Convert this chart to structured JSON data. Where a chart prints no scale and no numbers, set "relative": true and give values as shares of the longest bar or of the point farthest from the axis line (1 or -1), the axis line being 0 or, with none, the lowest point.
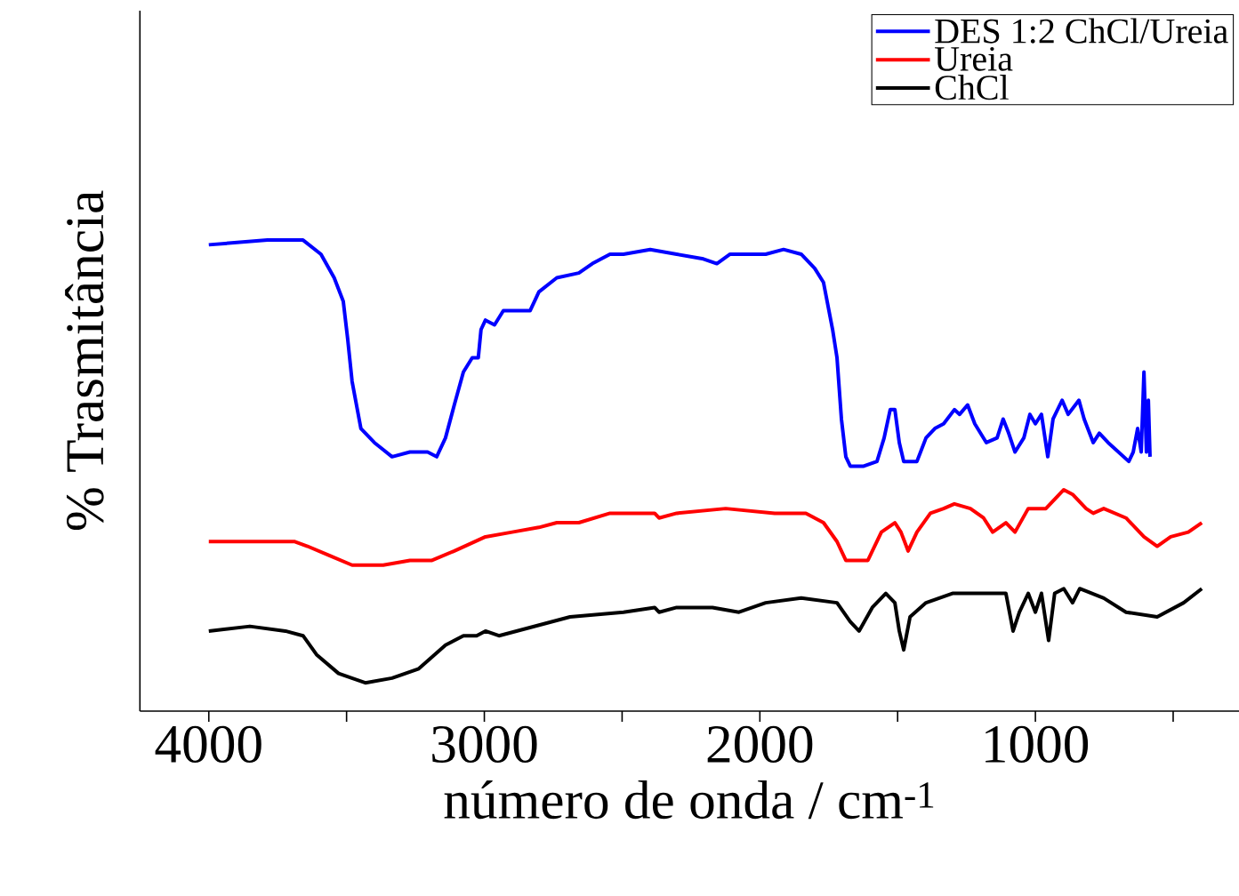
{
  "chart_data": {
    "type": "line",
    "relative": true,
    "xlabel": "número de onda / cm$^{-1}$",
    "ylabel": "% Trasmitância",
    "xlim": [
      4250,
      260
    ],
    "xticks": [
      4000,
      {
        "value": 3500,
        "label": null
      },
      3000,
      {
        "value": 2500,
        "label": null
      },
      2000,
      {
        "value": 1500,
        "label": null
      },
      1000,
      {
        "value": 500,
        "label": null
      }
    ],
    "legend": "top right",
    "line_style": "solid",
    "marker": "none",
    "series": [
      {
        "name": "DES 1:2 ChCl/Ureia",
        "color": "#0000ff",
        "x": [
          4000,
          3787,
          3658,
          3593,
          3545,
          3512,
          3496,
          3480,
          3448,
          3399,
          3335,
          3270,
          3206,
          3173,
          3141,
          3109,
          3076,
          3044,
          3022,
          3012,
          2996,
          2963,
          2931,
          2883,
          2834,
          2802,
          2737,
          2657,
          2608,
          2544,
          2495,
          2398,
          2302,
          2205,
          2156,
          2108,
          2043,
          1979,
          1914,
          1850,
          1801,
          1769,
          1736,
          1720,
          1704,
          1688,
          1672,
          1623,
          1575,
          1549,
          1527,
          1510,
          1494,
          1478,
          1430,
          1397,
          1365,
          1333,
          1294,
          1275,
          1246,
          1220,
          1178,
          1139,
          1117,
          1097,
          1074,
          1042,
          1020,
          1000,
          978,
          955,
          936,
          903,
          881,
          842,
          823,
          790,
          768,
          736,
          661,
          645,
          629,
          616,
          606,
          597,
          590,
          584
        ],
        "values": [
          0.99,
          1.0,
          1.0,
          0.97,
          0.92,
          0.87,
          0.79,
          0.7,
          0.6,
          0.57,
          0.54,
          0.55,
          0.55,
          0.54,
          0.58,
          0.65,
          0.72,
          0.75,
          0.75,
          0.81,
          0.83,
          0.82,
          0.85,
          0.85,
          0.85,
          0.89,
          0.92,
          0.93,
          0.95,
          0.97,
          0.97,
          0.98,
          0.97,
          0.96,
          0.95,
          0.97,
          0.97,
          0.97,
          0.98,
          0.97,
          0.94,
          0.91,
          0.81,
          0.75,
          0.62,
          0.54,
          0.52,
          0.52,
          0.53,
          0.58,
          0.64,
          0.64,
          0.57,
          0.53,
          0.53,
          0.58,
          0.6,
          0.61,
          0.64,
          0.63,
          0.65,
          0.61,
          0.57,
          0.58,
          0.62,
          0.59,
          0.55,
          0.58,
          0.63,
          0.61,
          0.63,
          0.54,
          0.62,
          0.66,
          0.63,
          0.66,
          0.62,
          0.57,
          0.59,
          0.57,
          0.53,
          0.55,
          0.6,
          0.55,
          0.72,
          0.55,
          0.66,
          0.54
        ]
      },
      {
        "name": "Ureia",
        "color": "#ff0000",
        "x": [
          4000,
          3851,
          3690,
          3642,
          3561,
          3480,
          3367,
          3270,
          3190,
          3109,
          2996,
          2899,
          2802,
          2737,
          2657,
          2544,
          2382,
          2366,
          2302,
          2124,
          1946,
          1833,
          1769,
          1720,
          1688,
          1656,
          1608,
          1559,
          1510,
          1488,
          1462,
          1430,
          1381,
          1333,
          1294,
          1236,
          1188,
          1155,
          1107,
          1074,
          1026,
          994,
          962,
          897,
          865,
          816,
          790,
          752,
          671,
          606,
          558,
          509,
          445,
          396
        ],
        "values": [
          0.36,
          0.36,
          0.36,
          0.35,
          0.33,
          0.31,
          0.31,
          0.32,
          0.32,
          0.34,
          0.37,
          0.38,
          0.39,
          0.4,
          0.4,
          0.42,
          0.42,
          0.41,
          0.42,
          0.43,
          0.42,
          0.42,
          0.4,
          0.36,
          0.32,
          0.32,
          0.32,
          0.38,
          0.4,
          0.38,
          0.34,
          0.38,
          0.42,
          0.43,
          0.44,
          0.43,
          0.41,
          0.38,
          0.4,
          0.38,
          0.43,
          0.43,
          0.43,
          0.47,
          0.46,
          0.43,
          0.42,
          0.43,
          0.41,
          0.37,
          0.35,
          0.37,
          0.38,
          0.4
        ]
      },
      {
        "name": "ChCl",
        "color": "#000000",
        "x": [
          4000,
          3851,
          3722,
          3658,
          3609,
          3529,
          3432,
          3335,
          3238,
          3141,
          3076,
          3028,
          2996,
          2947,
          2818,
          2689,
          2495,
          2382,
          2366,
          2302,
          2172,
          2076,
          1979,
          1850,
          1720,
          1672,
          1640,
          1592,
          1543,
          1510,
          1494,
          1478,
          1455,
          1397,
          1301,
          1204,
          1107,
          1081,
          1058,
          1026,
          1000,
          978,
          952,
          930,
          897,
          865,
          839,
          752,
          671,
          558,
          462,
          396
        ],
        "values": [
          0.17,
          0.18,
          0.17,
          0.16,
          0.12,
          0.08,
          0.06,
          0.07,
          0.09,
          0.14,
          0.16,
          0.16,
          0.17,
          0.16,
          0.18,
          0.2,
          0.21,
          0.22,
          0.21,
          0.22,
          0.22,
          0.21,
          0.23,
          0.24,
          0.23,
          0.19,
          0.17,
          0.22,
          0.25,
          0.23,
          0.17,
          0.13,
          0.2,
          0.23,
          0.25,
          0.25,
          0.25,
          0.17,
          0.21,
          0.25,
          0.21,
          0.25,
          0.15,
          0.25,
          0.26,
          0.23,
          0.26,
          0.24,
          0.21,
          0.2,
          0.23,
          0.26
        ]
      }
    ]
  }
}
